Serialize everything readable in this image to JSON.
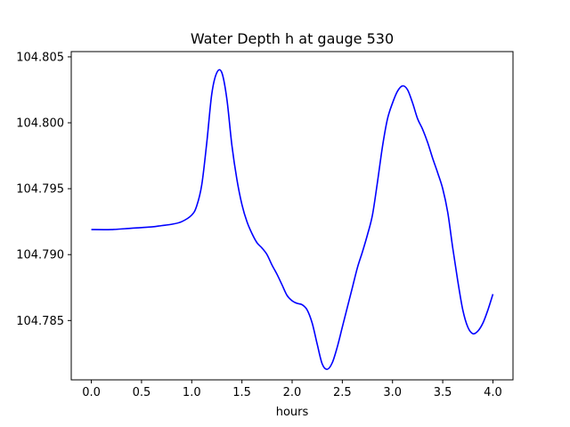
{
  "chart_data": {
    "type": "line",
    "title": "Water Depth h at gauge 530",
    "xlabel": "hours",
    "ylabel": "",
    "xlim": [
      -0.2,
      4.2
    ],
    "ylim": [
      104.7805,
      104.8054
    ],
    "xticks": [
      0.0,
      0.5,
      1.0,
      1.5,
      2.0,
      2.5,
      3.0,
      3.5,
      4.0
    ],
    "xtick_labels": [
      "0.0",
      "0.5",
      "1.0",
      "1.5",
      "2.0",
      "2.5",
      "3.0",
      "3.5",
      "4.0"
    ],
    "yticks": [
      104.785,
      104.79,
      104.795,
      104.8,
      104.805
    ],
    "ytick_labels": [
      "104.785",
      "104.790",
      "104.795",
      "104.800",
      "104.805"
    ],
    "grid": false,
    "series": [
      {
        "color": "#0000ff",
        "x": [
          0.0,
          0.2,
          0.4,
          0.6,
          0.7,
          0.8,
          0.9,
          1.0,
          1.05,
          1.1,
          1.15,
          1.2,
          1.25,
          1.3,
          1.35,
          1.4,
          1.45,
          1.5,
          1.55,
          1.6,
          1.65,
          1.7,
          1.75,
          1.8,
          1.85,
          1.9,
          1.95,
          2.0,
          2.05,
          2.1,
          2.15,
          2.2,
          2.25,
          2.3,
          2.35,
          2.4,
          2.45,
          2.5,
          2.55,
          2.6,
          2.65,
          2.7,
          2.75,
          2.8,
          2.85,
          2.9,
          2.95,
          3.0,
          3.05,
          3.1,
          3.15,
          3.2,
          3.25,
          3.3,
          3.35,
          3.4,
          3.45,
          3.5,
          3.55,
          3.6,
          3.65,
          3.7,
          3.75,
          3.8,
          3.85,
          3.9,
          3.95,
          4.0
        ],
        "y": [
          104.7919,
          104.7919,
          104.792,
          104.7921,
          104.7922,
          104.7923,
          104.7925,
          104.793,
          104.7937,
          104.7953,
          104.7985,
          104.8022,
          104.8038,
          104.8038,
          104.8018,
          104.7983,
          104.7957,
          104.7938,
          104.7925,
          104.7916,
          104.7909,
          104.7905,
          104.79,
          104.7892,
          104.7885,
          104.7877,
          104.7869,
          104.7865,
          104.7863,
          104.7862,
          104.7858,
          104.7848,
          104.7832,
          104.7817,
          104.7813,
          104.7818,
          104.783,
          104.7845,
          104.786,
          104.7875,
          104.789,
          104.7902,
          104.7915,
          104.793,
          104.7955,
          104.7982,
          104.8003,
          104.8015,
          104.8024,
          104.8028,
          104.8025,
          104.8015,
          104.8003,
          104.7995,
          104.7985,
          104.7973,
          104.7962,
          104.795,
          104.7932,
          104.7905,
          104.788,
          104.7858,
          104.7845,
          104.784,
          104.7842,
          104.7848,
          104.7858,
          104.787
        ]
      }
    ]
  }
}
